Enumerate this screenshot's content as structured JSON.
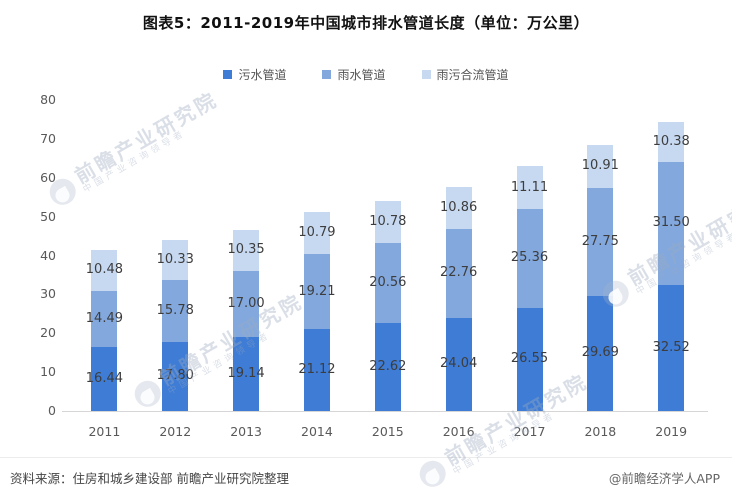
{
  "title": "图表5：2011-2019年中国城市排水管道长度（单位：万公里）",
  "chart_data": {
    "type": "bar",
    "stacked": true,
    "title": "图表5：2011-2019年中国城市排水管道长度（单位：万公里）",
    "unit": "万公里",
    "categories": [
      "2011",
      "2012",
      "2013",
      "2014",
      "2015",
      "2016",
      "2017",
      "2018",
      "2019"
    ],
    "series": [
      {
        "name": "污水管道",
        "color": "#3E7CD5",
        "values": [
          16.44,
          17.8,
          19.14,
          21.12,
          22.62,
          24.04,
          26.55,
          29.69,
          32.52
        ]
      },
      {
        "name": "雨水管道",
        "color": "#82A8DE",
        "values": [
          14.49,
          15.78,
          17.0,
          19.21,
          20.56,
          22.76,
          25.36,
          27.75,
          31.5
        ]
      },
      {
        "name": "雨污合流管道",
        "color": "#C7D9F1",
        "values": [
          10.48,
          10.33,
          10.35,
          10.79,
          10.78,
          10.86,
          11.11,
          10.91,
          10.38
        ]
      }
    ],
    "ylim": [
      0,
      80
    ],
    "ytick_step": 10,
    "grid": false,
    "legend_position": "top",
    "value_labels": "two-decimals",
    "axis_label_color": "#595959",
    "value_label_color": "#3d3d3d"
  },
  "watermark": {
    "text": "前瞻产业研究院",
    "subtext": "中国产业咨询领导者"
  },
  "footer": {
    "source": "资料来源：住房和城乡建设部 前瞻产业研究院整理",
    "credit": "@前瞻经济学人APP"
  }
}
